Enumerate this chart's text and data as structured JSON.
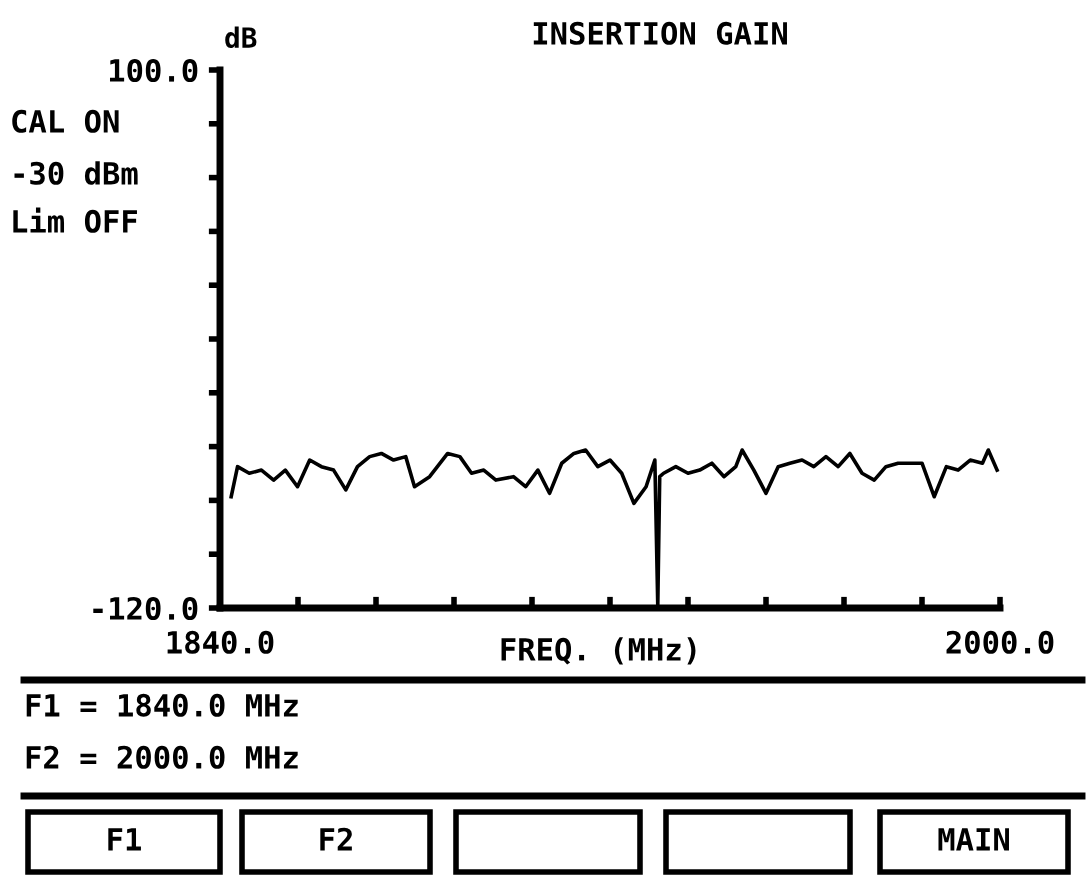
{
  "chart_data": {
    "type": "line",
    "title": "INSERTION GAIN",
    "xlabel": "FREQ. (MHz)",
    "ylabel": "dB",
    "annotations": [
      "CAL ON",
      "-30 dBm",
      "Lim OFF",
      "F1 = 1840.0 MHz",
      "F2 = 2000.0 MHz",
      "F1",
      "F2",
      "MAIN"
    ],
    "x": [
      1842.3,
      1843.6,
      1846.0,
      1848.5,
      1851.0,
      1853.4,
      1855.9,
      1858.4,
      1860.8,
      1863.3,
      1865.8,
      1868.2,
      1870.7,
      1873.1,
      1875.6,
      1878.1,
      1879.9,
      1883.0,
      1886.7,
      1889.2,
      1891.6,
      1894.1,
      1896.6,
      1900.2,
      1902.7,
      1905.2,
      1907.6,
      1910.1,
      1912.6,
      1915.0,
      1917.5,
      1920.0,
      1922.4,
      1924.9,
      1927.4,
      1929.2,
      1929.8,
      1930.2,
      1931.0,
      1933.5,
      1936.0,
      1938.4,
      1940.9,
      1943.4,
      1945.8,
      1947.1,
      1949.5,
      1952.0,
      1954.5,
      1956.9,
      1959.4,
      1961.8,
      1964.3,
      1966.8,
      1969.2,
      1971.7,
      1974.2,
      1976.6,
      1979.1,
      1981.6,
      1984.0,
      1986.5,
      1989.0,
      1991.4,
      1993.9,
      1996.4,
      1997.6,
      1999.4
    ],
    "series": [
      {
        "color": "#000000",
        "values": [
          -74.5,
          -62.2,
          -64.9,
          -63.6,
          -67.7,
          -63.6,
          -70.4,
          -59.5,
          -62.2,
          -63.6,
          -71.7,
          -62.2,
          -58.1,
          -56.8,
          -59.5,
          -58.1,
          -70.4,
          -66.3,
          -56.8,
          -58.1,
          -64.9,
          -63.6,
          -67.7,
          -66.3,
          -70.4,
          -63.6,
          -73.1,
          -60.8,
          -56.8,
          -55.4,
          -62.2,
          -59.5,
          -64.9,
          -77.2,
          -70.4,
          -59.5,
          -119,
          -66.3,
          -64.9,
          -62.2,
          -64.9,
          -63.6,
          -60.8,
          -66.3,
          -62.2,
          -55.4,
          -63.6,
          -73.1,
          -62.2,
          -60.8,
          -59.5,
          -62.2,
          -58.1,
          -62.2,
          -56.8,
          -64.9,
          -67.7,
          -62.2,
          -60.8,
          -60.8,
          -60.8,
          -74.5,
          -62.2,
          -63.6,
          -59.5,
          -60.8,
          -55.4,
          -63.6
        ]
      }
    ],
    "xlim": [
      1840,
      2000
    ],
    "ylim": [
      -120,
      100
    ],
    "xticks": [
      {
        "value": 1840,
        "label": "1840.0"
      },
      {
        "value": 1856,
        "label": null
      },
      {
        "value": 1872,
        "label": null
      },
      {
        "value": 1888,
        "label": null
      },
      {
        "value": 1904,
        "label": null
      },
      {
        "value": 1920,
        "label": null
      },
      {
        "value": 1936,
        "label": null
      },
      {
        "value": 1952,
        "label": null
      },
      {
        "value": 1968,
        "label": null
      },
      {
        "value": 1984,
        "label": null
      },
      {
        "value": 2000,
        "label": "2000.0"
      }
    ],
    "yticks": [
      {
        "value": -120,
        "label": "-120.0"
      },
      {
        "value": -98,
        "label": null
      },
      {
        "value": -76,
        "label": null
      },
      {
        "value": -54,
        "label": null
      },
      {
        "value": -32,
        "label": null
      },
      {
        "value": -10,
        "label": null
      },
      {
        "value": 12,
        "label": null
      },
      {
        "value": 34,
        "label": null
      },
      {
        "value": 56,
        "label": null
      },
      {
        "value": 78,
        "label": null
      },
      {
        "value": 100,
        "label": "100.0"
      }
    ],
    "grid": false,
    "legend": false,
    "marker": "none",
    "line_style": "solid"
  }
}
